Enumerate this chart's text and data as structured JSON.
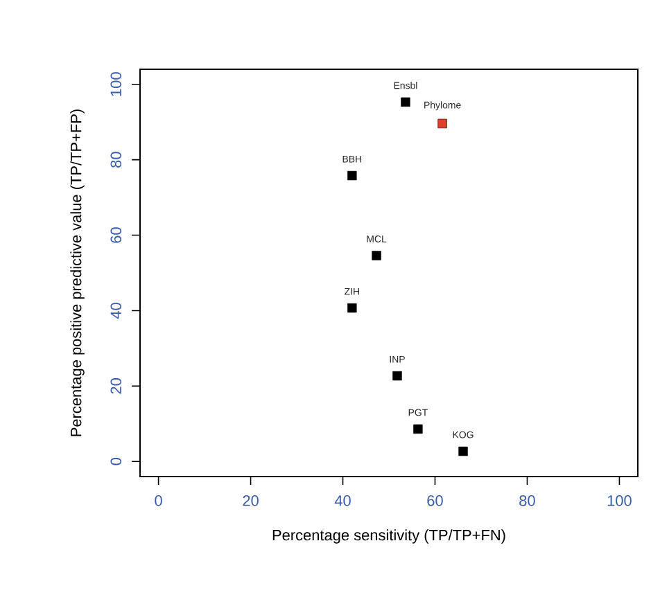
{
  "chart_data": {
    "type": "scatter",
    "xlabel": "Percentage sensitivity (TP/TP+FN)",
    "ylabel": "Percentage positive predictive value (TP/TP+FP)",
    "x": [
      53.6,
      61.6,
      42,
      47.3,
      42,
      51.8,
      56.3,
      66.1
    ],
    "values": [
      95.3,
      89.6,
      75.8,
      54.6,
      40.7,
      22.7,
      8.6,
      2.7
    ],
    "colors": [
      "#000000",
      "#e0402a",
      "#000000",
      "#000000",
      "#000000",
      "#000000",
      "#000000",
      "#000000"
    ],
    "annotations": [
      {
        "text": "Ensbl",
        "x": 53.6,
        "y": 95.3
      },
      {
        "text": "Phylome",
        "x": 61.6,
        "y": 89.6
      },
      {
        "text": "BBH",
        "x": 42,
        "y": 75.8
      },
      {
        "text": "MCL",
        "x": 47.3,
        "y": 54.6
      },
      {
        "text": "ZIH",
        "x": 42,
        "y": 40.7
      },
      {
        "text": "INP",
        "x": 51.8,
        "y": 22.7
      },
      {
        "text": "PGT",
        "x": 56.3,
        "y": 8.6
      },
      {
        "text": "KOG",
        "x": 66.1,
        "y": 2.7
      }
    ],
    "xlim": [
      -4,
      104
    ],
    "ylim": [
      -4,
      104
    ],
    "xticks": [
      0,
      20,
      40,
      60,
      80,
      100
    ],
    "yticks": [
      0,
      20,
      40,
      60,
      80,
      100
    ],
    "marker": "square"
  }
}
